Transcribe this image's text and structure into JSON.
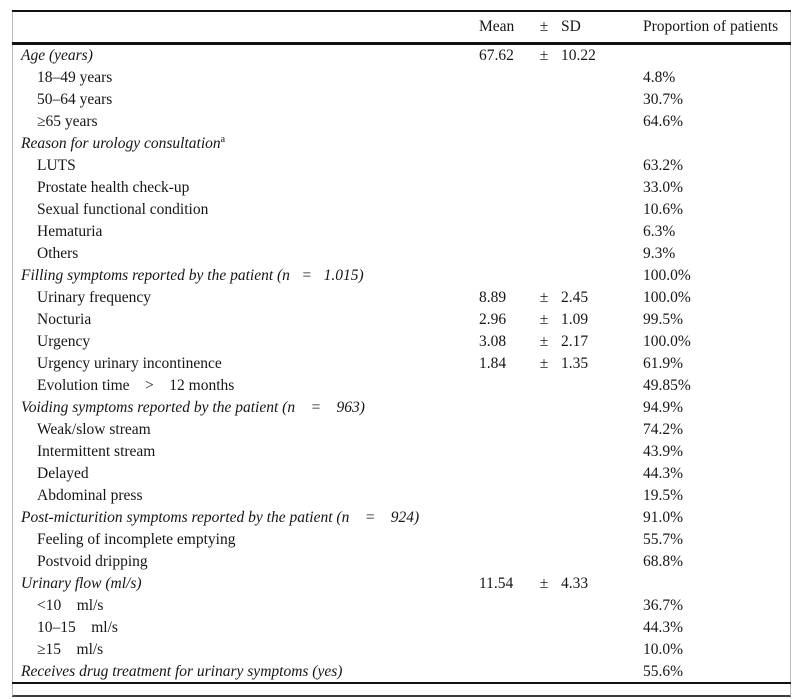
{
  "table": {
    "header": {
      "mean": "Mean",
      "pm": "±",
      "sd": "SD",
      "proportion": "Proportion of patients"
    },
    "rows": [
      {
        "label": "Age (years)",
        "type": "section",
        "sup": "",
        "mean": "67.62",
        "pm": "±",
        "sd": "10.22",
        "prop": ""
      },
      {
        "label": "18–49 years",
        "type": "item",
        "sup": "",
        "mean": "",
        "pm": "",
        "sd": "",
        "prop": "4.8%"
      },
      {
        "label": "50–64 years",
        "type": "item",
        "sup": "",
        "mean": "",
        "pm": "",
        "sd": "",
        "prop": "30.7%"
      },
      {
        "label": "≥65 years",
        "type": "item",
        "sup": "",
        "mean": "",
        "pm": "",
        "sd": "",
        "prop": "64.6%"
      },
      {
        "label": "Reason for urology consultation",
        "type": "section",
        "sup": "a",
        "mean": "",
        "pm": "",
        "sd": "",
        "prop": ""
      },
      {
        "label": "LUTS",
        "type": "item",
        "sup": "",
        "mean": "",
        "pm": "",
        "sd": "",
        "prop": "63.2%"
      },
      {
        "label": "Prostate health check-up",
        "type": "item",
        "sup": "",
        "mean": "",
        "pm": "",
        "sd": "",
        "prop": "33.0%"
      },
      {
        "label": "Sexual functional condition",
        "type": "item",
        "sup": "",
        "mean": "",
        "pm": "",
        "sd": "",
        "prop": "10.6%"
      },
      {
        "label": "Hematuria",
        "type": "item",
        "sup": "",
        "mean": "",
        "pm": "",
        "sd": "",
        "prop": "6.3%"
      },
      {
        "label": "Others",
        "type": "item",
        "sup": "",
        "mean": "",
        "pm": "",
        "sd": "",
        "prop": "9.3%"
      },
      {
        "label": "Filling symptoms reported by the patient (n   =   1.015)",
        "type": "section",
        "sup": "",
        "mean": "",
        "pm": "",
        "sd": "",
        "prop": "100.0%"
      },
      {
        "label": "Urinary frequency",
        "type": "item",
        "sup": "",
        "mean": "8.89",
        "pm": "±",
        "sd": "2.45",
        "prop": "100.0%"
      },
      {
        "label": "Nocturia",
        "type": "item",
        "sup": "",
        "mean": "2.96",
        "pm": "±",
        "sd": "1.09",
        "prop": "99.5%"
      },
      {
        "label": "Urgency",
        "type": "item",
        "sup": "",
        "mean": "3.08",
        "pm": "±",
        "sd": "2.17",
        "prop": "100.0%"
      },
      {
        "label": "Urgency urinary incontinence",
        "type": "item",
        "sup": "",
        "mean": "1.84",
        "pm": "±",
        "sd": "1.35",
        "prop": "61.9%"
      },
      {
        "label": "Evolution time    >    12 months",
        "type": "item",
        "sup": "",
        "mean": "",
        "pm": "",
        "sd": "",
        "prop": "49.85%"
      },
      {
        "label": "Voiding symptoms reported by the patient (n    =    963)",
        "type": "section",
        "sup": "",
        "mean": "",
        "pm": "",
        "sd": "",
        "prop": "94.9%"
      },
      {
        "label": "Weak/slow stream",
        "type": "item",
        "sup": "",
        "mean": "",
        "pm": "",
        "sd": "",
        "prop": "74.2%"
      },
      {
        "label": "Intermittent stream",
        "type": "item",
        "sup": "",
        "mean": "",
        "pm": "",
        "sd": "",
        "prop": "43.9%"
      },
      {
        "label": "Delayed",
        "type": "item",
        "sup": "",
        "mean": "",
        "pm": "",
        "sd": "",
        "prop": "44.3%"
      },
      {
        "label": "Abdominal press",
        "type": "item",
        "sup": "",
        "mean": "",
        "pm": "",
        "sd": "",
        "prop": "19.5%"
      },
      {
        "label": "Post-micturition symptoms reported by the patient (n    =    924)",
        "type": "section",
        "sup": "",
        "mean": "",
        "pm": "",
        "sd": "",
        "prop": "91.0%"
      },
      {
        "label": "Feeling of incomplete emptying",
        "type": "item",
        "sup": "",
        "mean": "",
        "pm": "",
        "sd": "",
        "prop": "55.7%"
      },
      {
        "label": "Postvoid dripping",
        "type": "item",
        "sup": "",
        "mean": "",
        "pm": "",
        "sd": "",
        "prop": "68.8%"
      },
      {
        "label": "Urinary flow (ml/s)",
        "type": "section",
        "sup": "",
        "mean": "11.54",
        "pm": "±",
        "sd": "4.33",
        "prop": ""
      },
      {
        "label": "<10    ml/s",
        "type": "item",
        "sup": "",
        "mean": "",
        "pm": "",
        "sd": "",
        "prop": "36.7%"
      },
      {
        "label": "10–15    ml/s",
        "type": "item",
        "sup": "",
        "mean": "",
        "pm": "",
        "sd": "",
        "prop": "44.3%"
      },
      {
        "label": "≥15    ml/s",
        "type": "item",
        "sup": "",
        "mean": "",
        "pm": "",
        "sd": "",
        "prop": "10.0%"
      },
      {
        "label": "Receives drug treatment for urinary symptoms (yes)",
        "type": "section",
        "sup": "",
        "mean": "",
        "pm": "",
        "sd": "",
        "prop": "55.6%"
      }
    ],
    "colors": {
      "rule": "#111111",
      "frame": "#b9b9b9",
      "text": "#161616"
    }
  }
}
